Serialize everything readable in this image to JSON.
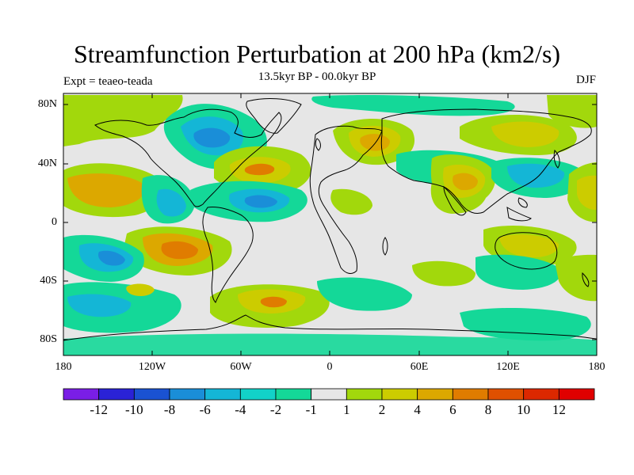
{
  "title": "Streamfunction Perturbation at 200 hPa (km2/s)",
  "subtitle": "13.5kyr BP - 00.0kyr BP",
  "left_label": "Expt = teaeo-teada",
  "right_label": "DJF",
  "lat_labels": [
    "80N",
    "40N",
    "0",
    "40S",
    "80S"
  ],
  "lon_labels": [
    "180",
    "120W",
    "60W",
    "0",
    "60E",
    "120E",
    "180"
  ],
  "colorbar": {
    "labels": [
      "-12",
      "-10",
      "-8",
      "-6",
      "-4",
      "-2",
      "-1",
      "1",
      "2",
      "4",
      "6",
      "8",
      "10",
      "12"
    ],
    "colors": [
      "#7a1ee6",
      "#2a22d6",
      "#1a52d2",
      "#1a8ed8",
      "#14b6d6",
      "#12d2c8",
      "#14d898",
      "#e6e6e6",
      "#a2d80c",
      "#cccc00",
      "#dca800",
      "#e07c00",
      "#e05000",
      "#dc2800",
      "#e00000"
    ]
  },
  "palette": {
    "neutral": "#e6e6e6",
    "pos1": "#a2d80c",
    "pos2": "#cccc00",
    "pos3": "#dca800",
    "pos4": "#e07c00",
    "neg1": "#14d898",
    "neg2": "#12d2c8",
    "neg3": "#14b6d6",
    "neg4": "#1a8ed8"
  },
  "icons": {
    "coastline": "coastline-icon"
  }
}
